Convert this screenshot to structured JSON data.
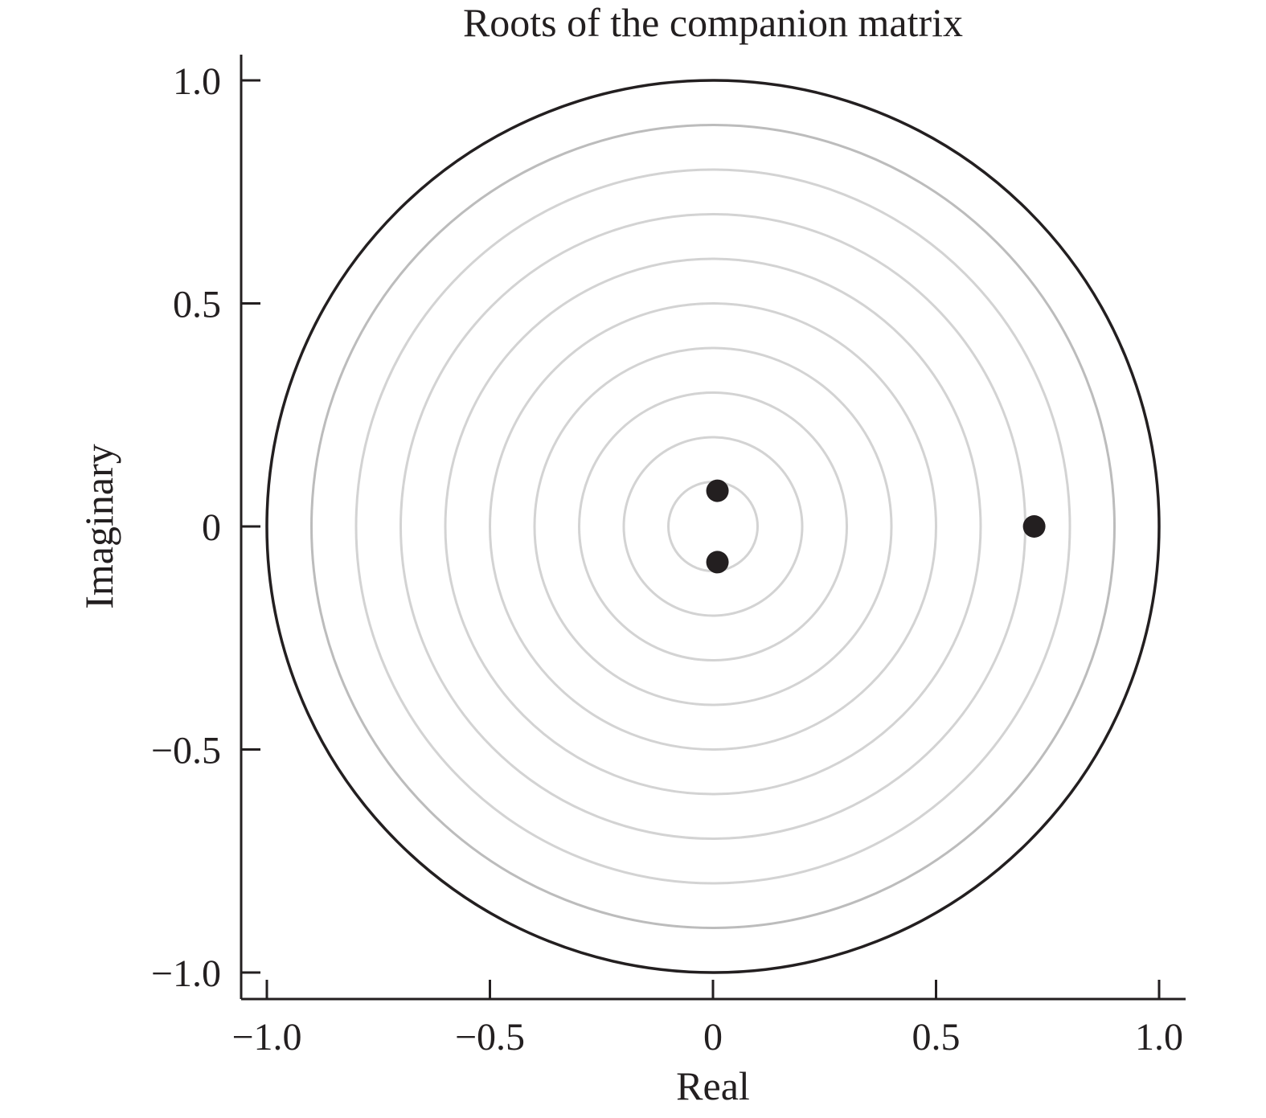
{
  "chart_data": {
    "type": "scatter",
    "title": "Roots of the companion matrix",
    "xlabel": "Real",
    "ylabel": "Imaginary",
    "xlim": [
      -1.05,
      1.05
    ],
    "ylim": [
      -1.05,
      1.05
    ],
    "x_ticks": [
      -1.0,
      -0.5,
      0,
      0.5,
      1.0
    ],
    "x_tick_labels": [
      "−1.0",
      "−0.5",
      "0",
      "0.5",
      "1.0"
    ],
    "y_ticks": [
      -1.0,
      -0.5,
      0,
      0.5,
      1.0
    ],
    "y_tick_labels": [
      "−1.0",
      "−0.5",
      "0",
      "0.5",
      "1.0"
    ],
    "grid": false,
    "unit_circle_radius": 1.0,
    "reference_circle_radii": [
      0.1,
      0.2,
      0.3,
      0.4,
      0.5,
      0.6,
      0.7,
      0.8,
      0.9
    ],
    "points": [
      {
        "x": 0.01,
        "y": 0.08
      },
      {
        "x": 0.01,
        "y": -0.08
      },
      {
        "x": 0.72,
        "y": 0.0
      }
    ],
    "colors": {
      "ink": "#231f20",
      "reference_circle": "#d3d3d3",
      "reference_circle_outer": "#bcbcbc"
    }
  }
}
